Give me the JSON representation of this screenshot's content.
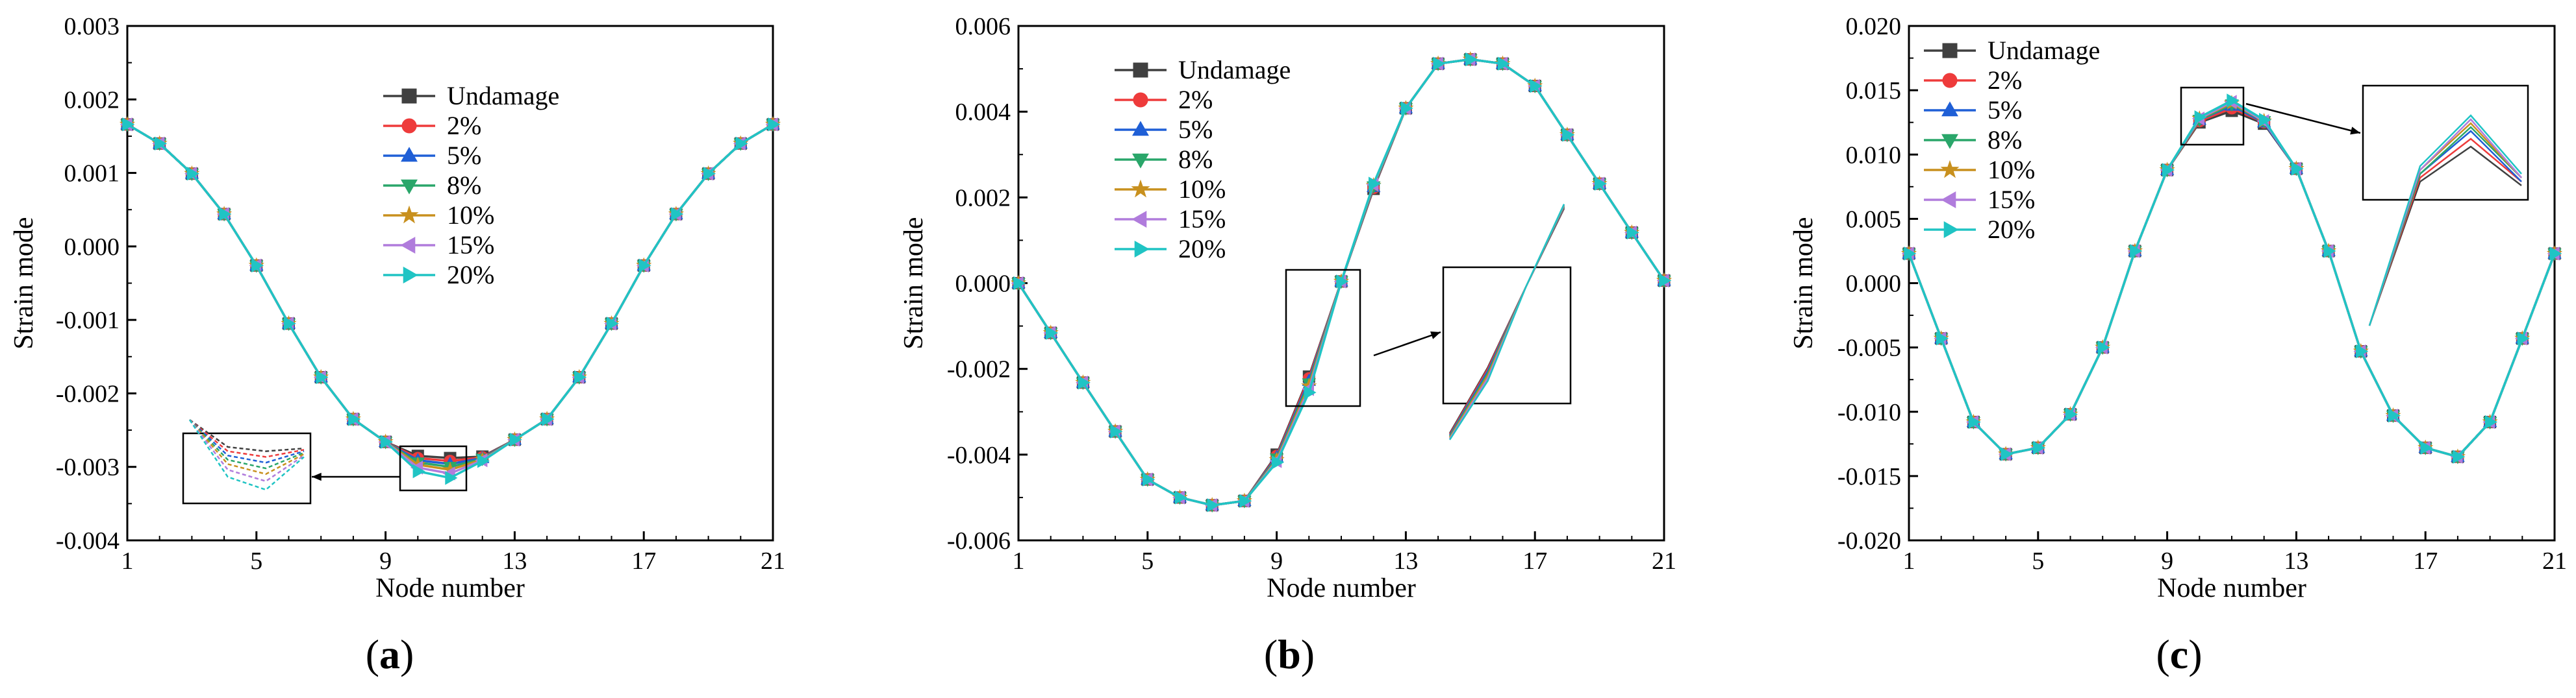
{
  "figure": {
    "series_colors": {
      "Undamage": "#404040",
      "2%": "#ee3b3b",
      "5%": "#1f5fd6",
      "8%": "#2aa66a",
      "10%": "#c8901e",
      "15%": "#b07cdc",
      "20%": "#20c4c4"
    },
    "series_markers": {
      "Undamage": "square",
      "2%": "circle",
      "5%": "triangle-up",
      "8%": "triangle-down",
      "10%": "star",
      "15%": "triangle-left",
      "20%": "triangle-right"
    }
  },
  "chart_data": [
    {
      "id": "a",
      "type": "line",
      "caption_open": "(",
      "caption_letter": "a",
      "caption_close": ")",
      "xlabel": "Node number",
      "ylabel": "Strain mode",
      "xlim": [
        1,
        21
      ],
      "ylim": [
        -0.004,
        0.003
      ],
      "xticks": [
        1,
        5,
        9,
        13,
        17,
        21
      ],
      "xtick_labels": [
        "1",
        "5",
        "9",
        "13",
        "17",
        "21"
      ],
      "yticks": [
        -0.004,
        -0.003,
        -0.002,
        -0.001,
        0.0,
        0.001,
        0.002,
        0.003
      ],
      "ytick_labels": [
        "-0.004",
        "-0.003",
        "-0.002",
        "-0.001",
        "0.000",
        "0.001",
        "0.002",
        "0.003"
      ],
      "x": [
        1,
        2,
        3,
        4,
        5,
        6,
        7,
        8,
        9,
        10,
        11,
        12,
        13,
        14,
        15,
        16,
        17,
        18,
        19,
        20,
        21
      ],
      "series": [
        {
          "name": "Undamage",
          "values": [
            0.00166,
            0.0014,
            0.00099,
            0.00044,
            -0.00026,
            -0.00105,
            -0.00178,
            -0.00235,
            -0.00266,
            -0.00285,
            -0.00288,
            -0.00286,
            -0.00263,
            -0.00235,
            -0.00178,
            -0.00105,
            -0.00026,
            0.00044,
            0.00099,
            0.0014,
            0.00166
          ]
        },
        {
          "name": "2%",
          "values": [
            0.00166,
            0.0014,
            0.00099,
            0.00044,
            -0.00026,
            -0.00105,
            -0.00178,
            -0.00235,
            -0.00266,
            -0.00288,
            -0.00292,
            -0.00287,
            -0.00263,
            -0.00235,
            -0.00178,
            -0.00105,
            -0.00026,
            0.00044,
            0.00099,
            0.0014,
            0.00166
          ]
        },
        {
          "name": "5%",
          "values": [
            0.00166,
            0.0014,
            0.00099,
            0.00044,
            -0.00026,
            -0.00105,
            -0.00178,
            -0.00235,
            -0.00266,
            -0.00291,
            -0.00296,
            -0.00288,
            -0.00263,
            -0.00235,
            -0.00178,
            -0.00105,
            -0.00026,
            0.00044,
            0.00099,
            0.0014,
            0.00166
          ]
        },
        {
          "name": "8%",
          "values": [
            0.00166,
            0.0014,
            0.00099,
            0.00044,
            -0.00026,
            -0.00105,
            -0.00178,
            -0.00235,
            -0.00266,
            -0.00294,
            -0.003,
            -0.00289,
            -0.00263,
            -0.00235,
            -0.00178,
            -0.00105,
            -0.00026,
            0.00044,
            0.00099,
            0.0014,
            0.00166
          ]
        },
        {
          "name": "10%",
          "values": [
            0.00166,
            0.0014,
            0.00099,
            0.00044,
            -0.00026,
            -0.00105,
            -0.00178,
            -0.00235,
            -0.00266,
            -0.00297,
            -0.00304,
            -0.0029,
            -0.00263,
            -0.00235,
            -0.00178,
            -0.00105,
            -0.00026,
            0.00044,
            0.00099,
            0.0014,
            0.00166
          ]
        },
        {
          "name": "15%",
          "values": [
            0.00166,
            0.0014,
            0.00099,
            0.00044,
            -0.00026,
            -0.00105,
            -0.00178,
            -0.00235,
            -0.00266,
            -0.00301,
            -0.00309,
            -0.00291,
            -0.00263,
            -0.00235,
            -0.00178,
            -0.00105,
            -0.00026,
            0.00044,
            0.00099,
            0.0014,
            0.00166
          ]
        },
        {
          "name": "20%",
          "values": [
            0.00166,
            0.0014,
            0.00099,
            0.00044,
            -0.00026,
            -0.00105,
            -0.00178,
            -0.00235,
            -0.00266,
            -0.00306,
            -0.00315,
            -0.00292,
            -0.00263,
            -0.00235,
            -0.00178,
            -0.00105,
            -0.00026,
            0.00044,
            0.00099,
            0.0014,
            0.00166
          ]
        }
      ],
      "legend_placement": "top-center",
      "inset": {
        "zoom_x": [
          10,
          11
        ],
        "placement": "lower-left"
      }
    },
    {
      "id": "b",
      "type": "line",
      "caption_open": "(",
      "caption_letter": "b",
      "caption_close": ")",
      "xlabel": "Node number",
      "ylabel": "Strain mode",
      "xlim": [
        1,
        21
      ],
      "ylim": [
        -0.006,
        0.006
      ],
      "xticks": [
        1,
        5,
        9,
        13,
        17,
        21
      ],
      "xtick_labels": [
        "1",
        "5",
        "9",
        "13",
        "17",
        "21"
      ],
      "yticks": [
        -0.006,
        -0.004,
        -0.002,
        0.0,
        0.002,
        0.004,
        0.006
      ],
      "ytick_labels": [
        "-0.006",
        "-0.004",
        "-0.002",
        "0.000",
        "0.002",
        "0.004",
        "0.006"
      ],
      "x": [
        1,
        2,
        3,
        4,
        5,
        6,
        7,
        8,
        9,
        10,
        11,
        12,
        13,
        14,
        15,
        16,
        17,
        18,
        19,
        20,
        21
      ],
      "series": [
        {
          "name": "Undamage",
          "values": [
            0.0,
            -0.00116,
            -0.00232,
            -0.00346,
            -0.00458,
            -0.005,
            -0.00518,
            -0.00508,
            -0.004,
            -0.00218,
            4e-05,
            0.0022,
            0.00408,
            0.00512,
            0.00522,
            0.00512,
            0.0046,
            0.00346,
            0.00232,
            0.00118,
            6e-05
          ]
        },
        {
          "name": "2%",
          "values": [
            0.0,
            -0.00116,
            -0.00232,
            -0.00346,
            -0.00458,
            -0.005,
            -0.00518,
            -0.00508,
            -0.00403,
            -0.00222,
            4e-05,
            0.00222,
            0.00408,
            0.00512,
            0.00522,
            0.00512,
            0.0046,
            0.00346,
            0.00232,
            0.00118,
            6e-05
          ]
        },
        {
          "name": "5%",
          "values": [
            0.0,
            -0.00116,
            -0.00232,
            -0.00346,
            -0.00458,
            -0.005,
            -0.00518,
            -0.00508,
            -0.00406,
            -0.00228,
            4e-05,
            0.00224,
            0.00408,
            0.00512,
            0.00522,
            0.00512,
            0.0046,
            0.00346,
            0.00232,
            0.00118,
            6e-05
          ]
        },
        {
          "name": "8%",
          "values": [
            0.0,
            -0.00116,
            -0.00232,
            -0.00346,
            -0.00458,
            -0.005,
            -0.00518,
            -0.00508,
            -0.00409,
            -0.00234,
            4e-05,
            0.00226,
            0.00408,
            0.00512,
            0.00522,
            0.00512,
            0.0046,
            0.00346,
            0.00232,
            0.00118,
            6e-05
          ]
        },
        {
          "name": "10%",
          "values": [
            0.0,
            -0.00116,
            -0.00232,
            -0.00346,
            -0.00458,
            -0.005,
            -0.00518,
            -0.00508,
            -0.00412,
            -0.0024,
            4e-05,
            0.00228,
            0.00408,
            0.00512,
            0.00522,
            0.00512,
            0.0046,
            0.00346,
            0.00232,
            0.00118,
            6e-05
          ]
        },
        {
          "name": "15%",
          "values": [
            0.0,
            -0.00116,
            -0.00232,
            -0.00346,
            -0.00458,
            -0.005,
            -0.00518,
            -0.00508,
            -0.00415,
            -0.00247,
            4e-05,
            0.0023,
            0.00408,
            0.00512,
            0.00522,
            0.00512,
            0.0046,
            0.00346,
            0.00232,
            0.00118,
            6e-05
          ]
        },
        {
          "name": "20%",
          "values": [
            0.0,
            -0.00116,
            -0.00232,
            -0.00346,
            -0.00458,
            -0.005,
            -0.00518,
            -0.00508,
            -0.00418,
            -0.00255,
            4e-05,
            0.00232,
            0.00408,
            0.00512,
            0.00522,
            0.00512,
            0.0046,
            0.00346,
            0.00232,
            0.00118,
            6e-05
          ]
        }
      ],
      "legend_placement": "top-left",
      "inset": {
        "zoom_x": [
          10,
          11
        ],
        "placement": "center-right"
      }
    },
    {
      "id": "c",
      "type": "line",
      "caption_open": "(",
      "caption_letter": "c",
      "caption_close": ")",
      "xlabel": "Node number",
      "ylabel": "Strain mode",
      "xlim": [
        1,
        21
      ],
      "ylim": [
        -0.02,
        0.02
      ],
      "xticks": [
        1,
        5,
        9,
        13,
        17,
        21
      ],
      "xtick_labels": [
        "1",
        "5",
        "9",
        "13",
        "17",
        "21"
      ],
      "yticks": [
        -0.02,
        -0.015,
        -0.01,
        -0.005,
        0.0,
        0.005,
        0.01,
        0.015,
        0.02
      ],
      "ytick_labels": [
        "-0.020",
        "-0.015",
        "-0.010",
        "-0.005",
        "0.000",
        "0.005",
        "0.010",
        "0.015",
        "0.020"
      ],
      "x": [
        1,
        2,
        3,
        4,
        5,
        6,
        7,
        8,
        9,
        10,
        11,
        12,
        13,
        14,
        15,
        16,
        17,
        18,
        19,
        20,
        21
      ],
      "series": [
        {
          "name": "Undamage",
          "values": [
            0.0023,
            -0.0043,
            -0.0108,
            -0.0133,
            -0.0128,
            -0.0102,
            -0.005,
            0.0025,
            0.0088,
            0.0125,
            0.0134,
            0.0124,
            0.0089,
            0.0025,
            -0.0053,
            -0.0103,
            -0.0128,
            -0.0135,
            -0.0108,
            -0.0043,
            0.0023
          ]
        },
        {
          "name": "2%",
          "values": [
            0.0023,
            -0.0043,
            -0.0108,
            -0.0133,
            -0.0128,
            -0.0102,
            -0.005,
            0.0025,
            0.0088,
            0.0126,
            0.0136,
            0.0125,
            0.0089,
            0.0025,
            -0.0053,
            -0.0103,
            -0.0128,
            -0.0135,
            -0.0108,
            -0.0043,
            0.0023
          ]
        },
        {
          "name": "5%",
          "values": [
            0.0023,
            -0.0043,
            -0.0108,
            -0.0133,
            -0.0128,
            -0.0102,
            -0.005,
            0.0025,
            0.0088,
            0.0127,
            0.0138,
            0.0125,
            0.0089,
            0.0025,
            -0.0053,
            -0.0103,
            -0.0128,
            -0.0135,
            -0.0108,
            -0.0043,
            0.0023
          ]
        },
        {
          "name": "8%",
          "values": [
            0.0023,
            -0.0043,
            -0.0108,
            -0.0133,
            -0.0128,
            -0.0102,
            -0.005,
            0.0025,
            0.0088,
            0.0127,
            0.0139,
            0.0126,
            0.0089,
            0.0025,
            -0.0053,
            -0.0103,
            -0.0128,
            -0.0135,
            -0.0108,
            -0.0043,
            0.0023
          ]
        },
        {
          "name": "10%",
          "values": [
            0.0023,
            -0.0043,
            -0.0108,
            -0.0133,
            -0.0128,
            -0.0102,
            -0.005,
            0.0025,
            0.0088,
            0.0128,
            0.014,
            0.0126,
            0.0089,
            0.0025,
            -0.0053,
            -0.0103,
            -0.0128,
            -0.0135,
            -0.0108,
            -0.0043,
            0.0023
          ]
        },
        {
          "name": "15%",
          "values": [
            0.0023,
            -0.0043,
            -0.0108,
            -0.0133,
            -0.0128,
            -0.0102,
            -0.005,
            0.0025,
            0.0088,
            0.0128,
            0.0141,
            0.0126,
            0.0089,
            0.0025,
            -0.0053,
            -0.0103,
            -0.0128,
            -0.0135,
            -0.0108,
            -0.0043,
            0.0023
          ]
        },
        {
          "name": "20%",
          "values": [
            0.0023,
            -0.0043,
            -0.0108,
            -0.0133,
            -0.0128,
            -0.0102,
            -0.005,
            0.0025,
            0.0088,
            0.0129,
            0.0142,
            0.0127,
            0.0089,
            0.0025,
            -0.0053,
            -0.0103,
            -0.0128,
            -0.0135,
            -0.0108,
            -0.0043,
            0.0023
          ]
        }
      ],
      "legend_placement": "top-left",
      "inset": {
        "zoom_x": [
          10,
          11
        ],
        "placement": "top-right"
      }
    }
  ]
}
